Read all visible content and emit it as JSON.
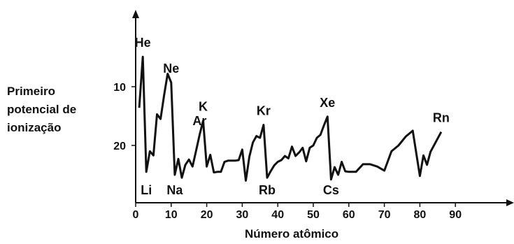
{
  "chart_data": {
    "type": "line",
    "title": "",
    "xlabel": "Número atômico",
    "ylabel_lines": [
      "Primeiro",
      "potencial de",
      "ionização"
    ],
    "xlim": [
      0,
      95
    ],
    "ylim": [
      0,
      26
    ],
    "y_inverted": true,
    "x_ticks": [
      0,
      10,
      20,
      30,
      40,
      50,
      60,
      70,
      80,
      90
    ],
    "y_ticks": [
      10,
      20
    ],
    "grid": false,
    "series": [
      {
        "x": [
          1,
          2,
          3,
          4,
          5,
          6,
          7,
          8,
          9,
          10,
          11,
          12,
          13,
          14,
          15,
          16,
          17,
          18,
          19,
          20,
          21,
          22,
          23,
          24,
          25,
          26,
          27,
          28,
          29,
          30,
          31,
          32,
          33,
          34,
          35,
          36,
          37,
          38,
          39,
          40,
          41,
          42,
          43,
          44,
          45,
          46,
          47,
          48,
          49,
          50,
          51,
          52,
          53,
          54,
          55,
          56,
          57,
          58,
          59,
          60,
          62,
          64,
          66,
          68,
          70,
          72,
          74,
          76,
          78,
          80,
          81,
          82,
          83,
          86
        ],
        "y": [
          13.6,
          4.9,
          24.5,
          21.0,
          21.7,
          14.7,
          15.5,
          11.5,
          7.8,
          9.3,
          25.0,
          22.3,
          25.5,
          23.3,
          22.4,
          23.6,
          20.9,
          18.2,
          15.8,
          23.6,
          21.6,
          24.6,
          24.5,
          24.5,
          22.8,
          22.6,
          22.6,
          22.6,
          22.5,
          20.7,
          26.0,
          21.9,
          19.5,
          18.4,
          18.7,
          16.5,
          25.5,
          24.4,
          23.4,
          22.8,
          22.5,
          21.8,
          22.2,
          20.2,
          21.8,
          21.2,
          20.4,
          22.7,
          20.4,
          20.0,
          18.7,
          18.2,
          16.6,
          15.1,
          25.8,
          23.7,
          25.0,
          22.8,
          24.4,
          24.5,
          24.5,
          23.2,
          23.2,
          23.6,
          24.3,
          21.0,
          20.0,
          18.5,
          17.5,
          25.2,
          21.7,
          23.3,
          21.1,
          17.7
        ]
      }
    ],
    "annotations": [
      {
        "text": "He",
        "x": 2
      },
      {
        "text": "Ne",
        "x": 10
      },
      {
        "text": "Ar",
        "x": 18
      },
      {
        "text": "Kr",
        "x": 36
      },
      {
        "text": "Xe",
        "x": 54
      },
      {
        "text": "Rn",
        "x": 86
      },
      {
        "text": "Li",
        "x": 3
      },
      {
        "text": "Na",
        "x": 11
      },
      {
        "text": "K",
        "x": 19
      },
      {
        "text": "Rb",
        "x": 37
      },
      {
        "text": "Cs",
        "x": 55
      }
    ],
    "line_color": "#111111"
  }
}
